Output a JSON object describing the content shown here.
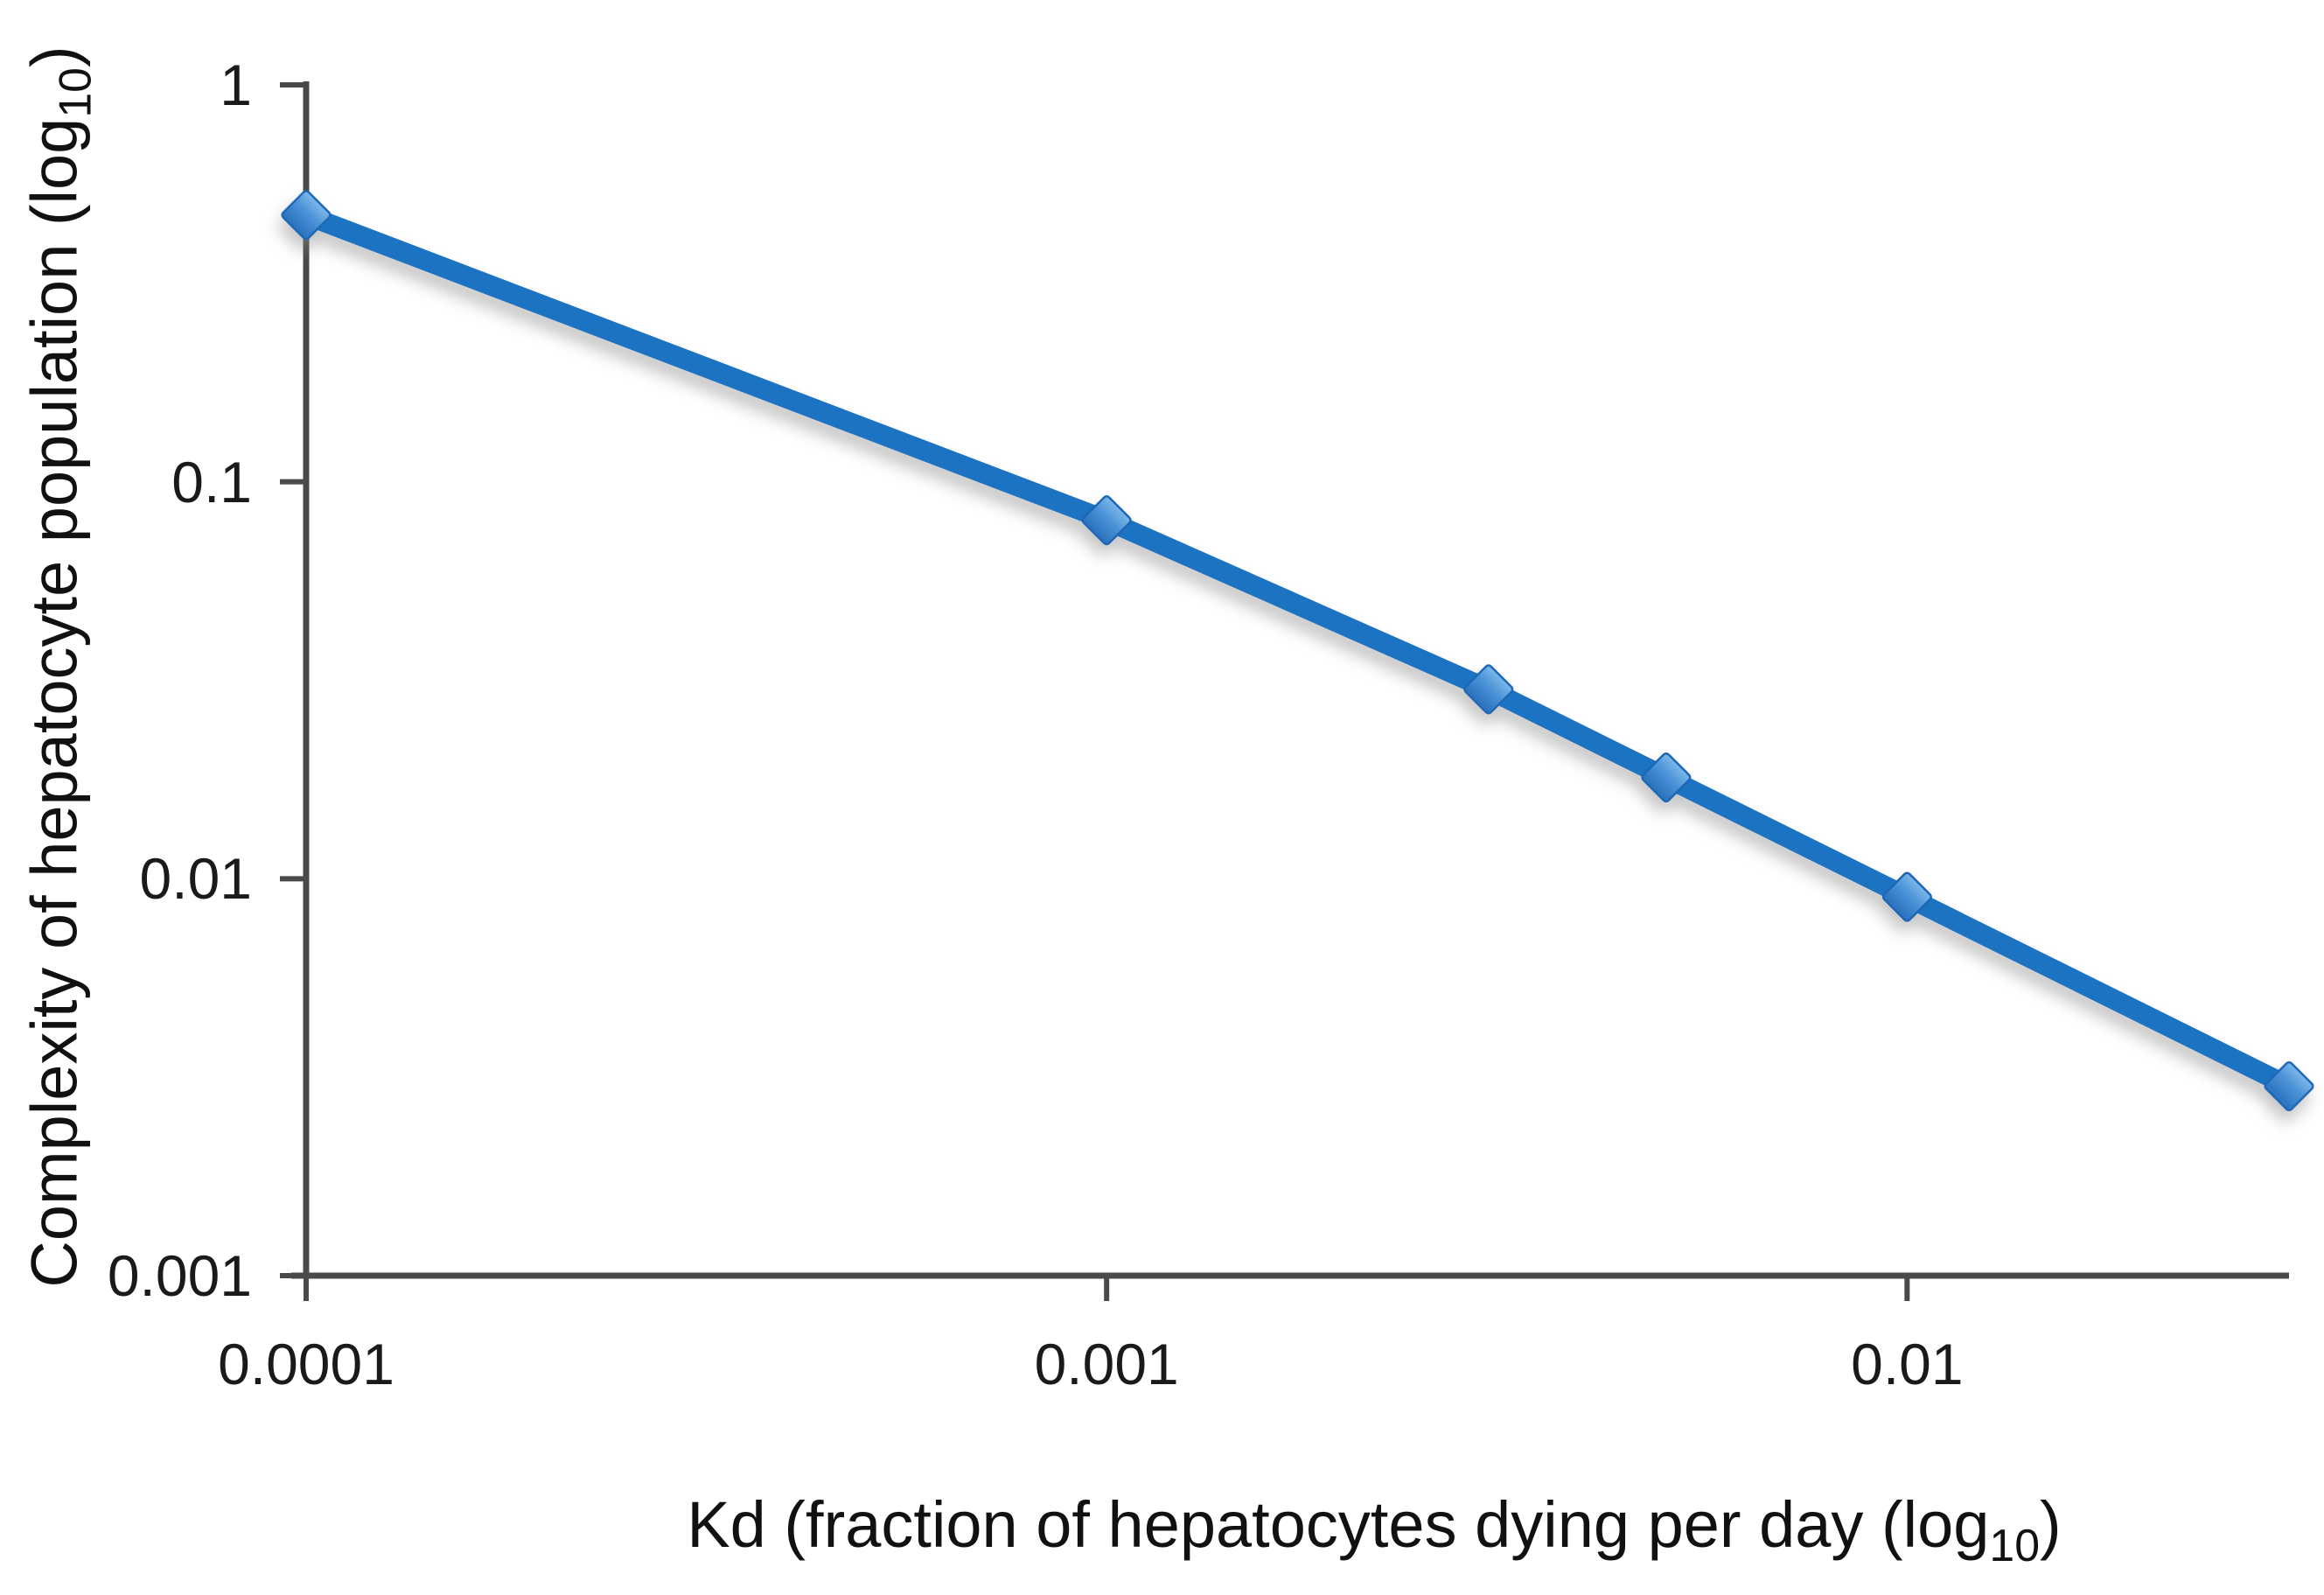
{
  "figure": {
    "background": "#ffffff"
  },
  "chart_data": {
    "type": "line",
    "title": "",
    "xlabel": {
      "text": "Kd (fraction of hepatocytes dying per day (log",
      "sub": "10",
      "suffix": ")"
    },
    "ylabel": {
      "text": "Complexity of hepatocyte population (log",
      "sub": "10",
      "suffix": ")"
    },
    "x_scale": "log",
    "y_scale": "log",
    "xlim": [
      0.0001,
      0.03
    ],
    "ylim": [
      0.001,
      1
    ],
    "grid": false,
    "legend": "none",
    "x_ticks": [
      {
        "value": 0.0001,
        "label": "0.0001"
      },
      {
        "value": 0.001,
        "label": "0.001"
      },
      {
        "value": 0.01,
        "label": "0.01"
      }
    ],
    "y_ticks": [
      {
        "value": 1,
        "label": "1"
      },
      {
        "value": 0.1,
        "label": "0.1"
      },
      {
        "value": 0.01,
        "label": "0.01"
      },
      {
        "value": 0.001,
        "label": "0.001"
      }
    ],
    "series": [
      {
        "name": "Complexity of hepatocyte population",
        "marker": "diamond",
        "x": [
          0.0001,
          0.001,
          0.003,
          0.005,
          0.01,
          0.03
        ],
        "y": [
          0.47,
          0.08,
          0.03,
          0.018,
          0.009,
          0.003
        ]
      }
    ],
    "colors": {
      "line": "#1e73c2",
      "marker_fill_top": "#72b1e6",
      "marker_fill_bottom": "#2a70be",
      "marker_stroke": "#1f67b4",
      "axis": "#4a4a4a",
      "text": "#1a1a1a"
    }
  }
}
